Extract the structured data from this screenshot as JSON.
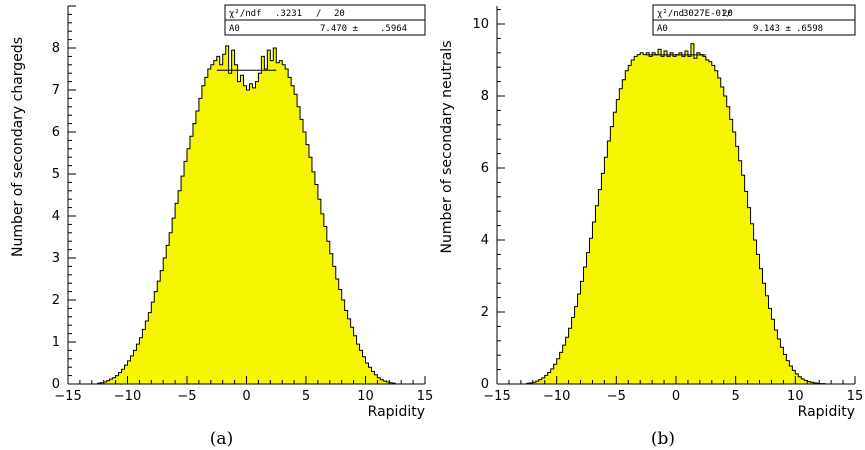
{
  "chart_data": [
    {
      "type": "bar",
      "title": "",
      "xlabel": "Rapidity",
      "ylabel": "Number of secondary chargeds",
      "caption": "(a)",
      "xlim": [
        -15,
        15
      ],
      "ylim": [
        0,
        9
      ],
      "x_ticks": [
        -15,
        -10,
        -5,
        0,
        5,
        10,
        15
      ],
      "y_ticks": [
        0,
        1,
        2,
        3,
        4,
        5,
        6,
        7,
        8
      ],
      "grid": false,
      "fill_color": "#f5f500",
      "stats_box": {
        "row1_label": "χ²/ndf",
        "row1_value": ".3231",
        "row1_sep": "/",
        "row1_ndf": "20",
        "row2_label": "A0",
        "row2_value": "7.470 ±",
        "row2_error": ".5964"
      },
      "fit": {
        "value": 7.47,
        "x_range": [
          -2.5,
          2.5
        ]
      },
      "bin_edges_start": -12.5,
      "bin_width": 0.25,
      "values": [
        0.02,
        0.03,
        0.05,
        0.08,
        0.12,
        0.15,
        0.2,
        0.27,
        0.35,
        0.45,
        0.55,
        0.67,
        0.8,
        0.95,
        1.1,
        1.3,
        1.5,
        1.7,
        1.95,
        2.2,
        2.45,
        2.7,
        3.0,
        3.3,
        3.6,
        3.95,
        4.3,
        4.6,
        4.95,
        5.3,
        5.6,
        5.9,
        6.2,
        6.5,
        6.8,
        7.1,
        7.3,
        7.5,
        7.6,
        7.7,
        7.8,
        7.6,
        7.85,
        8.05,
        7.4,
        7.95,
        7.6,
        7.2,
        7.35,
        7.1,
        7.0,
        7.15,
        7.05,
        7.2,
        7.4,
        7.8,
        7.5,
        7.95,
        7.7,
        8.0,
        7.65,
        7.7,
        7.6,
        7.5,
        7.3,
        7.1,
        6.9,
        6.6,
        6.3,
        6.0,
        5.7,
        5.4,
        5.05,
        4.75,
        4.4,
        4.05,
        3.75,
        3.4,
        3.1,
        2.8,
        2.5,
        2.25,
        2.0,
        1.75,
        1.55,
        1.35,
        1.15,
        0.95,
        0.8,
        0.65,
        0.5,
        0.4,
        0.3,
        0.22,
        0.15,
        0.1,
        0.07,
        0.05,
        0.03,
        0.02
      ]
    },
    {
      "type": "bar",
      "title": "",
      "xlabel": "Rapidity",
      "ylabel": "Number of secondary neutrals",
      "caption": "(b)",
      "xlim": [
        -15,
        15
      ],
      "ylim": [
        0,
        10.5
      ],
      "x_ticks": [
        -15,
        -10,
        -5,
        0,
        5,
        10,
        15
      ],
      "y_ticks": [
        0,
        2,
        4,
        6,
        8,
        10
      ],
      "grid": false,
      "fill_color": "#f5f500",
      "stats_box": {
        "row1_label": "χ²/nd",
        "row1_value": "3027E-01/",
        "row1_sep": "",
        "row1_ndf": "20",
        "row2_label": "A0",
        "row2_value": "9.143 ±",
        "row2_error": ".6598"
      },
      "fit": {
        "value": 9.143,
        "x_range": [
          -2.5,
          2.5
        ]
      },
      "bin_edges_start": -12.5,
      "bin_width": 0.25,
      "values": [
        0.02,
        0.03,
        0.05,
        0.08,
        0.12,
        0.17,
        0.24,
        0.32,
        0.42,
        0.55,
        0.7,
        0.88,
        1.08,
        1.3,
        1.55,
        1.85,
        2.15,
        2.5,
        2.85,
        3.25,
        3.65,
        4.05,
        4.5,
        4.95,
        5.4,
        5.85,
        6.3,
        6.75,
        7.15,
        7.55,
        7.9,
        8.2,
        8.45,
        8.7,
        8.85,
        9.0,
        9.1,
        9.15,
        9.2,
        9.15,
        9.2,
        9.1,
        9.2,
        9.15,
        9.3,
        9.1,
        9.25,
        9.1,
        9.2,
        9.1,
        9.15,
        9.2,
        9.1,
        9.25,
        9.1,
        9.45,
        9.05,
        9.2,
        9.15,
        9.1,
        9.0,
        8.95,
        8.85,
        8.7,
        8.5,
        8.25,
        8.0,
        7.7,
        7.35,
        7.0,
        6.6,
        6.2,
        5.8,
        5.35,
        4.9,
        4.45,
        4.0,
        3.6,
        3.2,
        2.8,
        2.45,
        2.1,
        1.8,
        1.5,
        1.25,
        1.02,
        0.82,
        0.65,
        0.5,
        0.38,
        0.28,
        0.2,
        0.14,
        0.1,
        0.07,
        0.05,
        0.03,
        0.02,
        0.01,
        0.01
      ]
    }
  ]
}
